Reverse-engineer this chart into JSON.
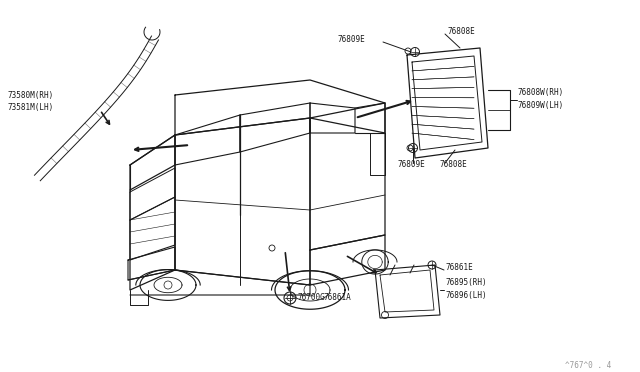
{
  "bg_color": "#ffffff",
  "line_color": "#1a1a1a",
  "fig_width": 6.4,
  "fig_height": 3.72,
  "dpi": 100,
  "footer_text": "^767^0 . 4",
  "labels": {
    "73580M_RH": "73580M(RH)",
    "73581M_LH": "73581M(LH)",
    "76809E_top": "76809E",
    "76808E_top": "76808E",
    "76808W_RH": "76808W(RH)",
    "76809W_LH": "76809W(LH)",
    "76809E_mid": "76809E",
    "76808E_mid": "76808E",
    "76861E": "76861E",
    "76700G": "76700G",
    "76861A": "76861A",
    "76895_RH": "76895(RH)",
    "76896_LH": "76896(LH)"
  },
  "label_fontsize": 5.5,
  "footer_fontsize": 5.5
}
